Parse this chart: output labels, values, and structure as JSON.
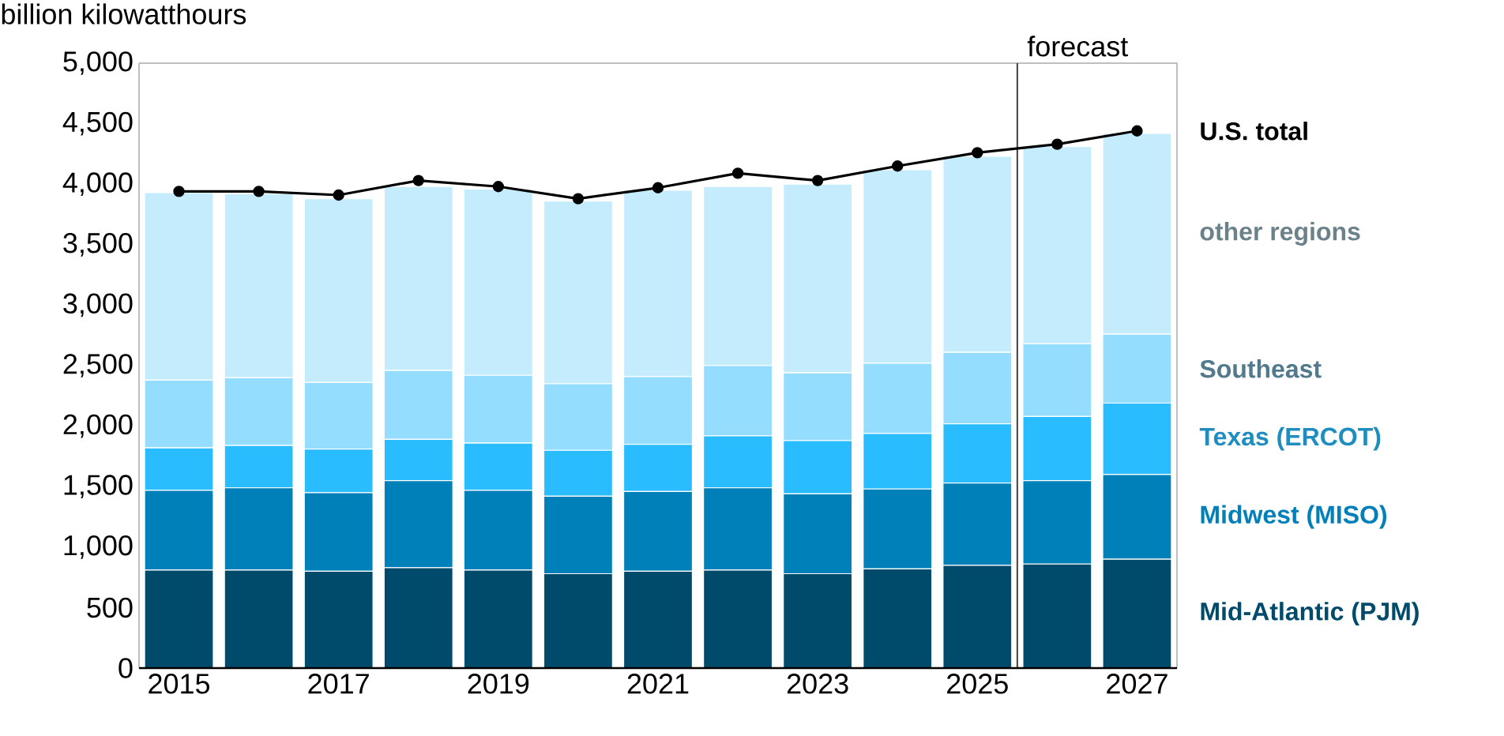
{
  "chart_data": {
    "type": "bar",
    "stacked": true,
    "ylabel": "billion kilowatthours",
    "x": [
      2015,
      2016,
      2017,
      2018,
      2019,
      2020,
      2021,
      2022,
      2023,
      2024,
      2025,
      2026,
      2027
    ],
    "xlim": [
      2014.5,
      2027.5
    ],
    "xticks": [
      2015,
      2017,
      2019,
      2021,
      2023,
      2025,
      2027
    ],
    "ylim": [
      0,
      5000
    ],
    "yticks": [
      0,
      500,
      {
        "value": 1000,
        "label": "1,000"
      },
      {
        "value": 1500,
        "label": "1,500"
      },
      {
        "value": 2000,
        "label": "2,000"
      },
      {
        "value": 2500,
        "label": "2,500"
      },
      {
        "value": 3000,
        "label": "3,000"
      },
      {
        "value": 3500,
        "label": "3,500"
      },
      {
        "value": 4000,
        "label": "4,000"
      },
      {
        "value": 4500,
        "label": "4,500"
      },
      {
        "value": 5000,
        "label": "5,000"
      }
    ],
    "series": [
      {
        "name": "Mid-Atlantic (PJM)",
        "color": "#004b6b",
        "values": [
          810,
          810,
          800,
          830,
          810,
          780,
          800,
          810,
          780,
          820,
          850,
          860,
          900
        ]
      },
      {
        "name": "Midwest (MISO)",
        "color": "#0080b9",
        "values": [
          660,
          680,
          650,
          720,
          660,
          640,
          660,
          680,
          660,
          660,
          680,
          690,
          700
        ]
      },
      {
        "name": "Texas (ERCOT)",
        "color": "#29bcff",
        "values": [
          350,
          350,
          360,
          340,
          390,
          380,
          390,
          430,
          440,
          460,
          490,
          530,
          590
        ]
      },
      {
        "name": "Southeast",
        "color": "#94ddfe",
        "values": [
          560,
          560,
          550,
          570,
          560,
          550,
          560,
          580,
          560,
          580,
          590,
          600,
          570
        ]
      },
      {
        "name": "other regions",
        "color": "#c5ecfd",
        "values": [
          1550,
          1520,
          1520,
          1520,
          1540,
          1510,
          1540,
          1480,
          1560,
          1600,
          1620,
          1630,
          1660
        ]
      },
      {
        "name": "U.S. total",
        "type": "line",
        "color": "#000000",
        "marker": "circle",
        "line_style": "solid",
        "values": [
          3940,
          3940,
          3910,
          4030,
          3980,
          3880,
          3970,
          4090,
          4030,
          4150,
          4260,
          4330,
          4440
        ]
      }
    ],
    "ref_lines": [
      {
        "axis": "x",
        "value": 2025.5,
        "label": "forecast",
        "color": "#404040"
      }
    ]
  }
}
